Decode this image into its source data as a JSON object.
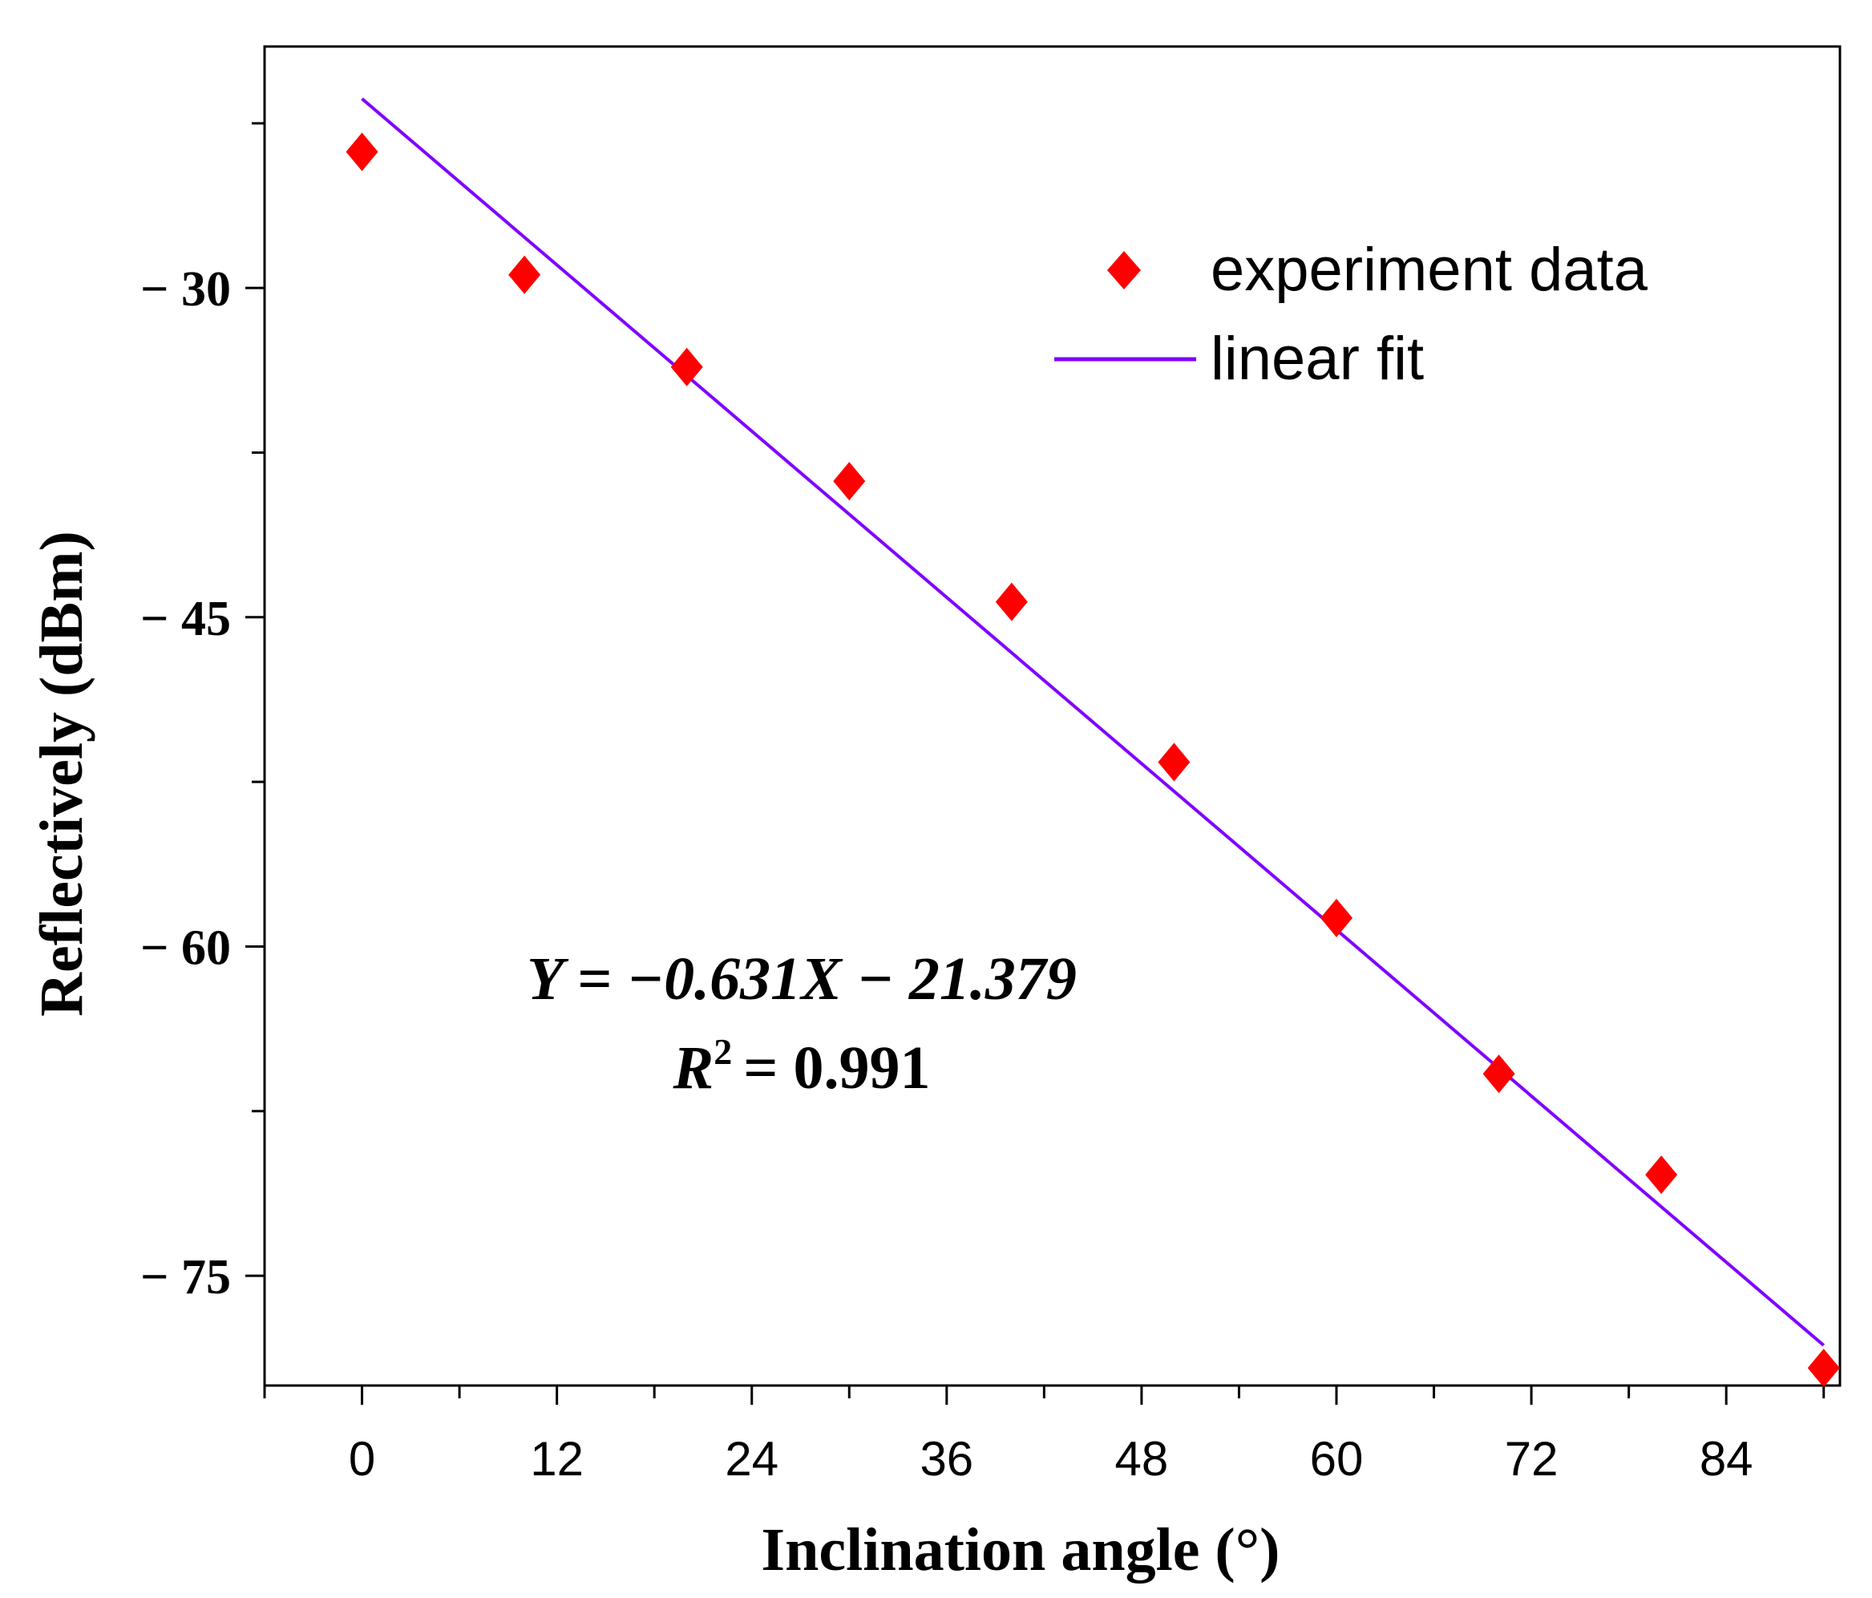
{
  "chart_data": {
    "type": "scatter",
    "xlabel": "Inclination angle (°)",
    "ylabel": "Reflectively (dBm)",
    "xlim": [
      -6,
      91
    ],
    "ylim": [
      -80,
      -19
    ],
    "xticks": [
      0,
      12,
      24,
      36,
      48,
      60,
      72,
      84
    ],
    "xtick_labels": [
      "0",
      "12",
      "24",
      "36",
      "48",
      "60",
      "72",
      "84"
    ],
    "yticks": [
      -30,
      -45,
      -60,
      -75
    ],
    "ytick_labels": [
      "− 30",
      "− 45",
      "− 60",
      "− 75"
    ],
    "grid": false,
    "legend_position": "top-right",
    "series": [
      {
        "name": "experiment data",
        "kind": "scatter",
        "marker": "diamond",
        "color": "#ff0000",
        "x": [
          0,
          10,
          20,
          30,
          40,
          50,
          60,
          70,
          80,
          90
        ],
        "y": [
          -23.8,
          -29.4,
          -33.6,
          -38.8,
          -44.3,
          -51.6,
          -58.7,
          -65.8,
          -70.4,
          -79.2
        ]
      },
      {
        "name": "linear fit",
        "kind": "line",
        "color": "#7f00ff",
        "x": [
          0,
          90
        ],
        "y": [
          -21.379,
          -78.169
        ]
      }
    ],
    "annotation": {
      "equation": "Y = −0.631X − 21.379",
      "r2_symbol": "R",
      "r2_power": "2",
      "r2_value": "= 0.991"
    }
  }
}
